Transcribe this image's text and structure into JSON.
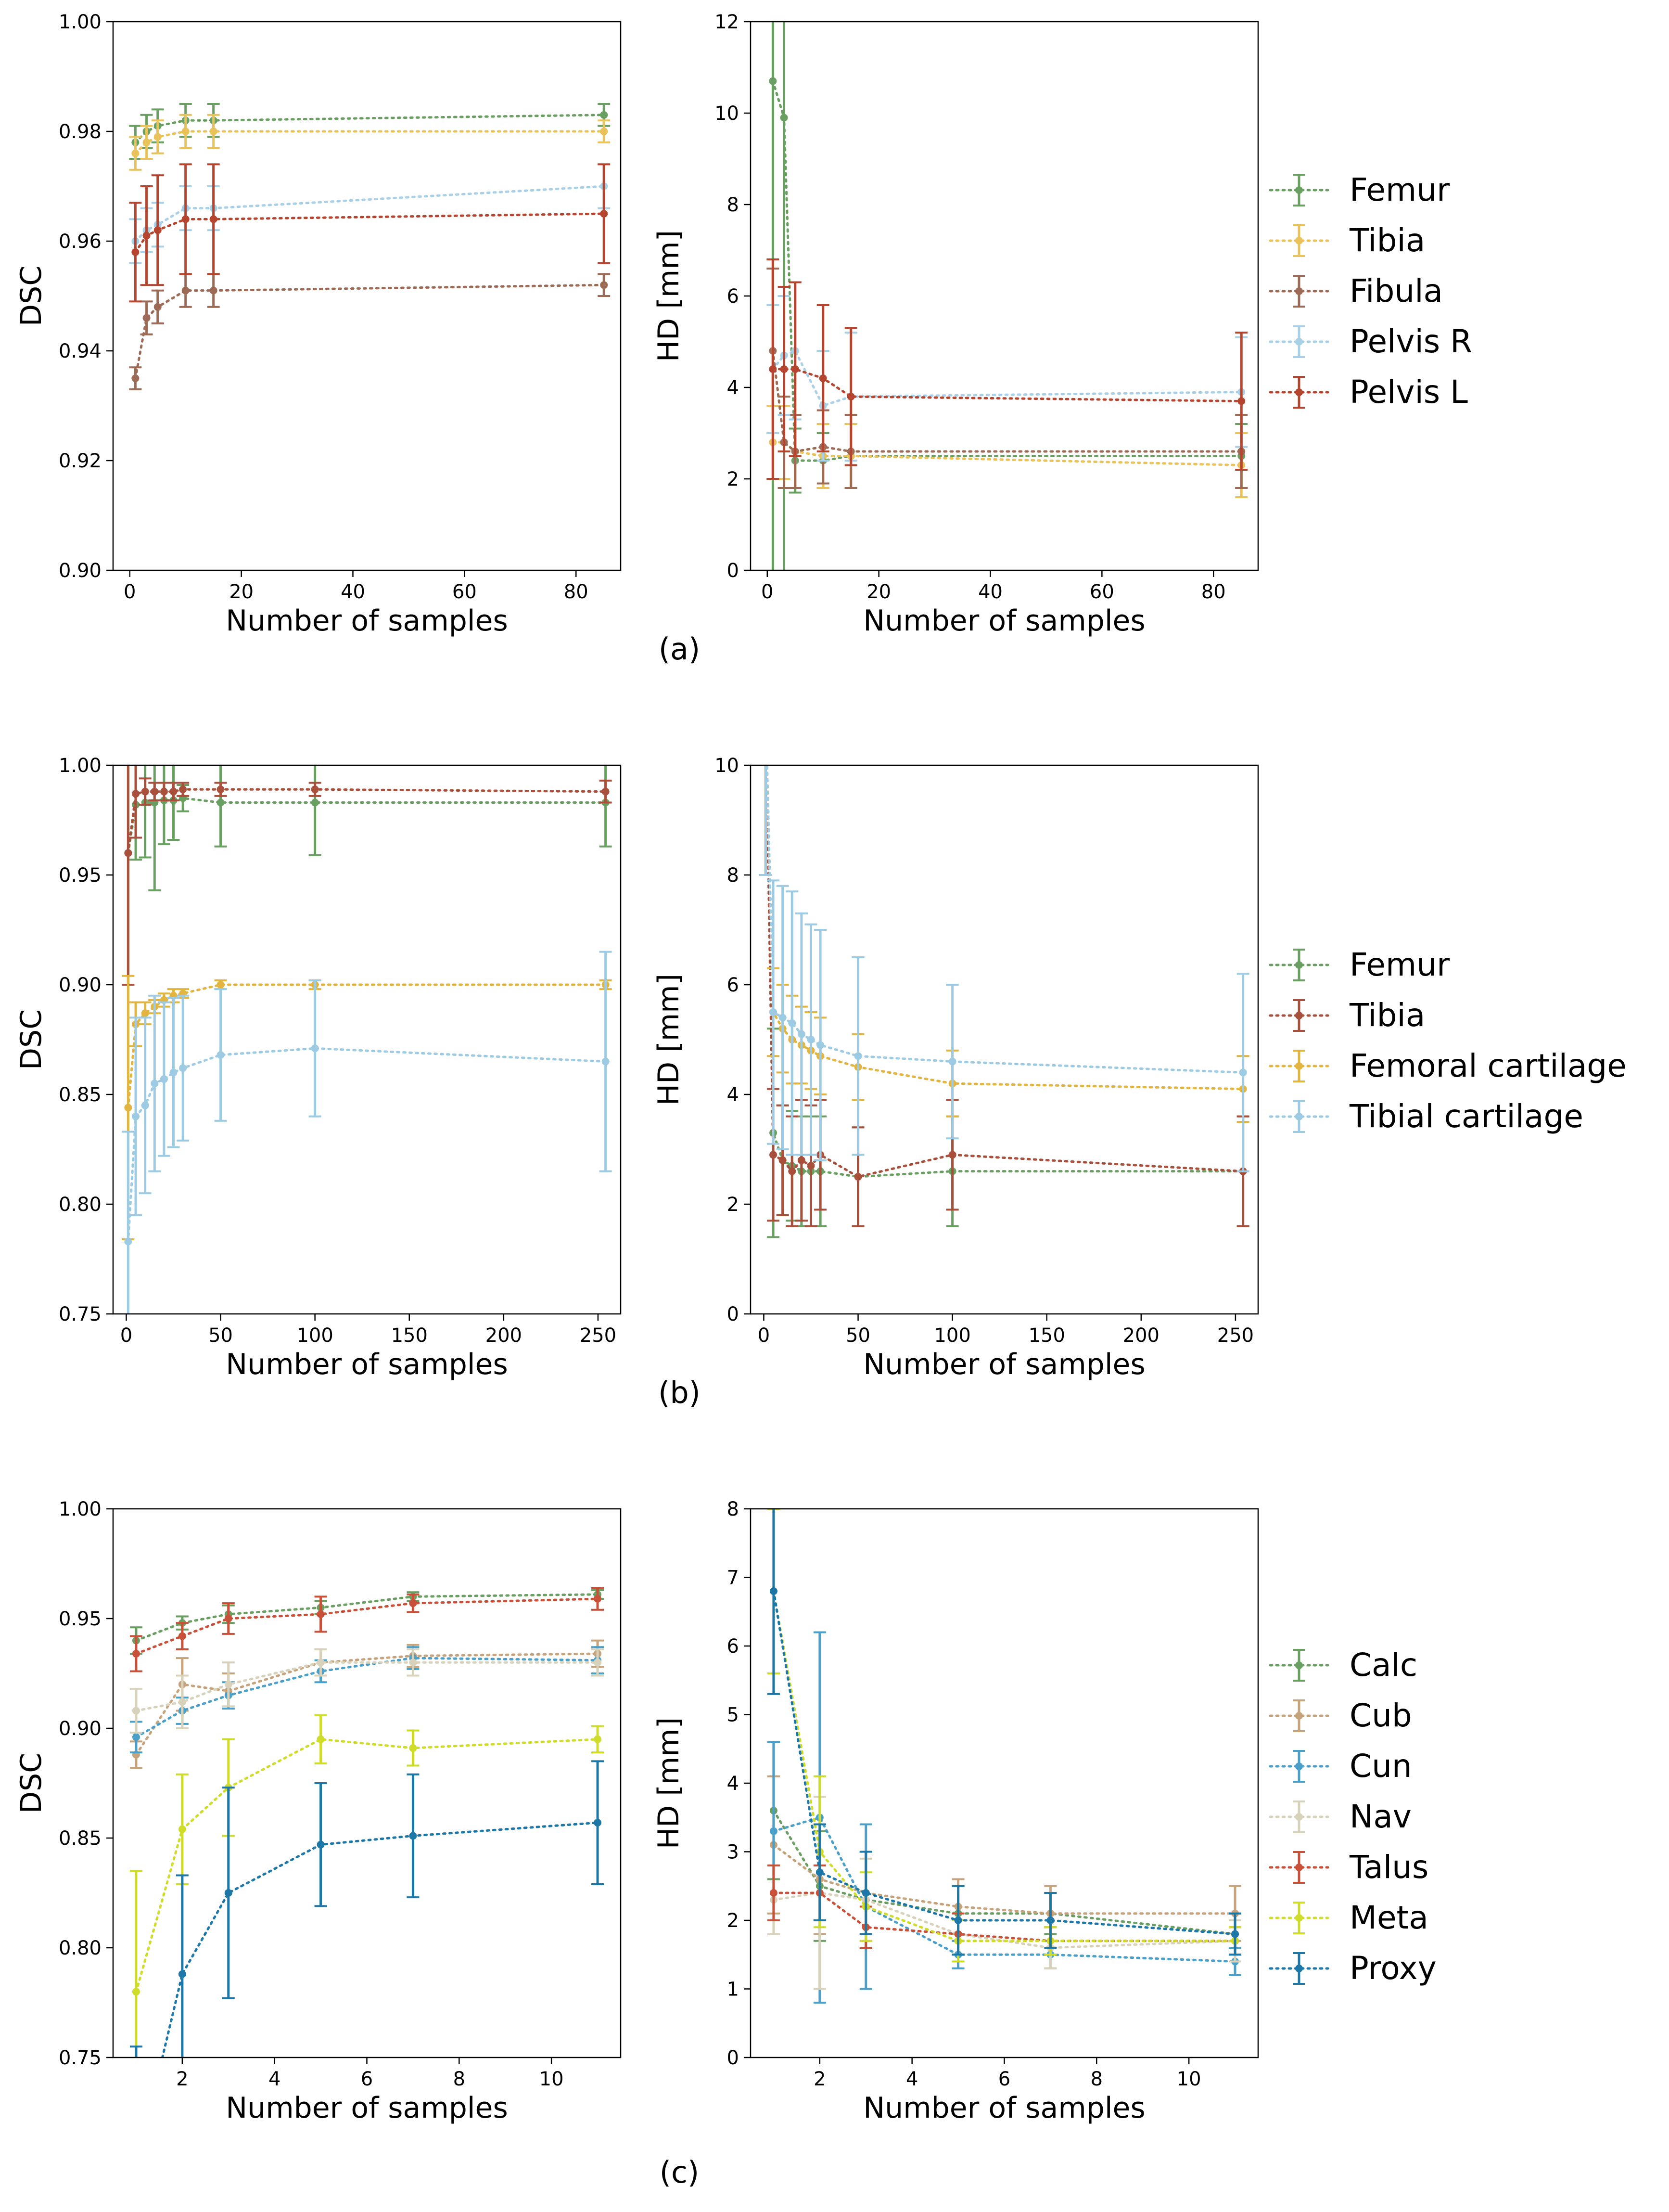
{
  "colors": {
    "femur": "#6a9f62",
    "tibia_a": "#e9c35a",
    "fibula": "#9c6a55",
    "pelvis_r": "#a8d0e6",
    "pelvis_l": "#b5452f",
    "tibia_b": "#a9503c",
    "fem_cart": "#e2b440",
    "tib_cart": "#9ccbe3",
    "calc": "#6a9f62",
    "cub": "#c7a37b",
    "cun": "#4aa0c8",
    "nav": "#d8d2ba",
    "talus": "#c9513a",
    "meta": "#cfdc2a",
    "proxy": "#1d78a8"
  },
  "chart_data": [
    {
      "id": "a-dsc",
      "type": "line",
      "panel": "(a)",
      "xlabel": "Number of samples",
      "ylabel": "DSC",
      "xlim": [
        -3,
        88
      ],
      "ylim": [
        0.9,
        1.0
      ],
      "xticks": [
        0,
        20,
        40,
        60,
        80
      ],
      "xtick_labels": [
        "0",
        "20",
        "40",
        "60",
        "80"
      ],
      "yticks": [
        0.9,
        0.92,
        0.94,
        0.96,
        0.98,
        1.0
      ],
      "ytick_labels": [
        "0.90",
        "0.92",
        "0.94",
        "0.96",
        "0.98",
        "1.00"
      ],
      "x": [
        1,
        3,
        5,
        10,
        15,
        85
      ],
      "series": [
        {
          "name": "Femur",
          "color_key": "femur",
          "values": [
            0.978,
            0.98,
            0.981,
            0.982,
            0.982,
            0.983
          ],
          "err": [
            0.003,
            0.003,
            0.003,
            0.003,
            0.003,
            0.002
          ]
        },
        {
          "name": "Tibia",
          "color_key": "tibia_a",
          "values": [
            0.976,
            0.978,
            0.979,
            0.98,
            0.98,
            0.98
          ],
          "err": [
            0.003,
            0.003,
            0.003,
            0.003,
            0.003,
            0.002
          ]
        },
        {
          "name": "Fibula",
          "color_key": "fibula",
          "values": [
            0.935,
            0.946,
            0.948,
            0.951,
            0.951,
            0.952
          ],
          "err": [
            0.002,
            0.003,
            0.003,
            0.003,
            0.003,
            0.002
          ]
        },
        {
          "name": "Pelvis R",
          "color_key": "pelvis_r",
          "values": [
            0.96,
            0.962,
            0.963,
            0.966,
            0.966,
            0.97
          ],
          "err": [
            0.004,
            0.004,
            0.004,
            0.004,
            0.004,
            0.004
          ]
        },
        {
          "name": "Pelvis L",
          "color_key": "pelvis_l",
          "values": [
            0.958,
            0.961,
            0.962,
            0.964,
            0.964,
            0.965
          ],
          "err": [
            0.009,
            0.009,
            0.01,
            0.01,
            0.01,
            0.009
          ]
        }
      ]
    },
    {
      "id": "a-hd",
      "type": "line",
      "panel": "(a)",
      "xlabel": "Number of samples",
      "ylabel": "HD [mm]",
      "xlim": [
        -3,
        88
      ],
      "ylim": [
        0,
        12
      ],
      "xticks": [
        0,
        20,
        40,
        60,
        80
      ],
      "xtick_labels": [
        "0",
        "20",
        "40",
        "60",
        "80"
      ],
      "yticks": [
        0,
        2,
        4,
        6,
        8,
        10,
        12
      ],
      "ytick_labels": [
        "0",
        "2",
        "4",
        "6",
        "8",
        "10",
        "12"
      ],
      "x": [
        1,
        3,
        5,
        10,
        15,
        85
      ],
      "legend": [
        "Femur",
        "Tibia",
        "Fibula",
        "Pelvis R",
        "Pelvis L"
      ],
      "legend_color_keys": [
        "femur",
        "tibia_a",
        "fibula",
        "pelvis_r",
        "pelvis_l"
      ],
      "series": [
        {
          "name": "Femur",
          "color_key": "femur",
          "values": [
            10.7,
            9.9,
            2.4,
            2.4,
            2.5,
            2.5
          ],
          "err": [
            13,
            13,
            0.7,
            0.6,
            0.7,
            0.7
          ]
        },
        {
          "name": "Tibia",
          "color_key": "tibia_a",
          "values": [
            2.8,
            2.8,
            2.6,
            2.5,
            2.5,
            2.3
          ],
          "err": [
            0.8,
            0.8,
            0.8,
            0.7,
            0.7,
            0.7
          ]
        },
        {
          "name": "Fibula",
          "color_key": "fibula",
          "values": [
            4.8,
            2.8,
            2.6,
            2.7,
            2.6,
            2.6
          ],
          "err": [
            1.8,
            1.0,
            0.8,
            0.8,
            0.8,
            0.8
          ]
        },
        {
          "name": "Pelvis R",
          "color_key": "pelvis_r",
          "values": [
            4.4,
            4.7,
            4.8,
            3.6,
            3.8,
            3.9
          ],
          "err": [
            1.4,
            1.3,
            1.5,
            1.2,
            1.4,
            1.2
          ]
        },
        {
          "name": "Pelvis L",
          "color_key": "pelvis_l",
          "values": [
            4.4,
            4.4,
            4.4,
            4.2,
            3.8,
            3.7
          ],
          "err": [
            2.4,
            1.8,
            1.9,
            1.6,
            1.5,
            1.5
          ]
        }
      ]
    },
    {
      "id": "b-dsc",
      "type": "line",
      "panel": "(b)",
      "xlabel": "Number of samples",
      "ylabel": "DSC",
      "xlim": [
        -7,
        262
      ],
      "ylim": [
        0.75,
        1.0
      ],
      "xticks": [
        0,
        50,
        100,
        150,
        200,
        250
      ],
      "xtick_labels": [
        "0",
        "50",
        "100",
        "150",
        "200",
        "250"
      ],
      "yticks": [
        0.75,
        0.8,
        0.85,
        0.9,
        0.95,
        1.0
      ],
      "ytick_labels": [
        "0.75",
        "0.80",
        "0.85",
        "0.90",
        "0.95",
        "1.00"
      ],
      "x": [
        1,
        5,
        10,
        15,
        20,
        25,
        30,
        50,
        100,
        254
      ],
      "series": [
        {
          "name": "Femur",
          "color_key": "femur",
          "values": [
            0.96,
            0.982,
            0.983,
            0.983,
            0.984,
            0.984,
            0.985,
            0.983,
            0.983,
            0.983
          ],
          "err": [
            0.06,
            0.025,
            0.025,
            0.04,
            0.02,
            0.018,
            0.006,
            0.02,
            0.024,
            0.02
          ]
        },
        {
          "name": "Tibia",
          "color_key": "tibia_b",
          "values": [
            0.96,
            0.987,
            0.988,
            0.988,
            0.988,
            0.988,
            0.989,
            0.989,
            0.989,
            0.988
          ],
          "err": [
            0.06,
            0.02,
            0.006,
            0.004,
            0.004,
            0.004,
            0.003,
            0.003,
            0.003,
            0.005
          ]
        },
        {
          "name": "Femoral cartilage",
          "color_key": "fem_cart",
          "values": [
            0.844,
            0.882,
            0.887,
            0.89,
            0.893,
            0.895,
            0.896,
            0.9,
            0.9,
            0.9
          ],
          "err": [
            0.06,
            0.01,
            0.005,
            0.003,
            0.003,
            0.003,
            0.002,
            0.002,
            0.002,
            0.002
          ]
        },
        {
          "name": "Tibial cartilage",
          "color_key": "tib_cart",
          "values": [
            0.783,
            0.84,
            0.845,
            0.855,
            0.857,
            0.86,
            0.862,
            0.868,
            0.871,
            0.865
          ],
          "err": [
            0.05,
            0.045,
            0.04,
            0.04,
            0.035,
            0.034,
            0.033,
            0.03,
            0.031,
            0.05
          ]
        }
      ]
    },
    {
      "id": "b-hd",
      "type": "line",
      "panel": "(b)",
      "xlabel": "Number of samples",
      "ylabel": "HD [mm]",
      "xlim": [
        -7,
        262
      ],
      "ylim": [
        0,
        10
      ],
      "xticks": [
        0,
        50,
        100,
        150,
        200,
        250
      ],
      "xtick_labels": [
        "0",
        "50",
        "100",
        "150",
        "200",
        "250"
      ],
      "yticks": [
        0,
        2,
        4,
        6,
        8,
        10
      ],
      "ytick_labels": [
        "0",
        "2",
        "4",
        "6",
        "8",
        "10"
      ],
      "x": [
        1,
        5,
        10,
        15,
        20,
        25,
        30,
        50,
        100,
        254
      ],
      "legend": [
        "Femur",
        "Tibia",
        "Femoral cartilage",
        "Tibial cartilage"
      ],
      "legend_color_keys": [
        "femur",
        "tibia_b",
        "fem_cart",
        "tib_cart"
      ],
      "series": [
        {
          "name": "Femur",
          "color_key": "femur",
          "values": [
            11,
            3.3,
            2.8,
            2.7,
            2.6,
            2.6,
            2.6,
            2.5,
            2.6,
            2.6
          ],
          "err": [
            3,
            1.9,
            1.0,
            1.0,
            1.0,
            1.0,
            1.0,
            0.9,
            1.0,
            1.0
          ]
        },
        {
          "name": "Tibia",
          "color_key": "tibia_b",
          "values": [
            11,
            2.9,
            2.8,
            2.6,
            2.8,
            2.7,
            2.9,
            2.5,
            2.9,
            2.6
          ],
          "err": [
            3,
            1.2,
            1.0,
            1.0,
            1.1,
            1.1,
            1.0,
            0.9,
            1.0,
            1.0
          ]
        },
        {
          "name": "Femoral cartilage",
          "color_key": "fem_cart",
          "values": [
            11,
            5.5,
            5.2,
            5.0,
            4.9,
            4.8,
            4.7,
            4.5,
            4.2,
            4.1
          ],
          "err": [
            3,
            0.8,
            0.8,
            0.8,
            0.7,
            0.7,
            0.7,
            0.6,
            0.6,
            0.6
          ]
        },
        {
          "name": "Tibial cartilage",
          "color_key": "tib_cart",
          "values": [
            11,
            5.5,
            5.4,
            5.3,
            5.1,
            5.0,
            4.9,
            4.7,
            4.6,
            4.4
          ],
          "err": [
            3,
            2.4,
            2.4,
            2.4,
            2.2,
            2.1,
            2.1,
            1.8,
            1.4,
            1.8
          ]
        }
      ]
    },
    {
      "id": "c-dsc",
      "type": "line",
      "panel": "(c)",
      "xlabel": "Number of samples",
      "ylabel": "DSC",
      "xlim": [
        0.5,
        11.5
      ],
      "ylim": [
        0.75,
        1.0
      ],
      "xticks": [
        2,
        4,
        6,
        8,
        10
      ],
      "xtick_labels": [
        "2",
        "4",
        "6",
        "8",
        "10"
      ],
      "yticks": [
        0.75,
        0.8,
        0.85,
        0.9,
        0.95,
        1.0
      ],
      "ytick_labels": [
        "0.75",
        "0.80",
        "0.85",
        "0.90",
        "0.95",
        "1.00"
      ],
      "x": [
        1,
        2,
        3,
        5,
        7,
        11
      ],
      "series": [
        {
          "name": "Calc",
          "color_key": "calc",
          "values": [
            0.94,
            0.948,
            0.952,
            0.955,
            0.96,
            0.961
          ],
          "err": [
            0.006,
            0.003,
            0.004,
            0.003,
            0.002,
            0.002
          ]
        },
        {
          "name": "Cub",
          "color_key": "cub",
          "values": [
            0.888,
            0.92,
            0.917,
            0.93,
            0.933,
            0.934
          ],
          "err": [
            0.006,
            0.012,
            0.008,
            0.006,
            0.005,
            0.006
          ]
        },
        {
          "name": "Cun",
          "color_key": "cun",
          "values": [
            0.896,
            0.908,
            0.915,
            0.926,
            0.932,
            0.931
          ],
          "err": [
            0.007,
            0.006,
            0.006,
            0.005,
            0.005,
            0.006
          ]
        },
        {
          "name": "Nav",
          "color_key": "nav",
          "values": [
            0.908,
            0.912,
            0.92,
            0.93,
            0.93,
            0.93
          ],
          "err": [
            0.01,
            0.012,
            0.01,
            0.006,
            0.006,
            0.006
          ]
        },
        {
          "name": "Talus",
          "color_key": "talus",
          "values": [
            0.934,
            0.942,
            0.95,
            0.952,
            0.957,
            0.959
          ],
          "err": [
            0.008,
            0.006,
            0.007,
            0.008,
            0.004,
            0.005
          ]
        },
        {
          "name": "Meta",
          "color_key": "meta",
          "values": [
            0.78,
            0.854,
            0.873,
            0.895,
            0.891,
            0.895
          ],
          "err": [
            0.055,
            0.025,
            0.022,
            0.011,
            0.008,
            0.006
          ]
        },
        {
          "name": "Proxy",
          "color_key": "proxy",
          "values": [
            0.7,
            0.788,
            0.825,
            0.847,
            0.851,
            0.857
          ],
          "err": [
            0.055,
            0.045,
            0.048,
            0.028,
            0.028,
            0.028
          ]
        }
      ]
    },
    {
      "id": "c-hd",
      "type": "line",
      "panel": "(c)",
      "xlabel": "Number of samples",
      "ylabel": "HD [mm]",
      "xlim": [
        0.5,
        11.5
      ],
      "ylim": [
        0,
        8
      ],
      "xticks": [
        2,
        4,
        6,
        8,
        10
      ],
      "xtick_labels": [
        "2",
        "4",
        "6",
        "8",
        "10"
      ],
      "yticks": [
        0,
        1,
        2,
        3,
        4,
        5,
        6,
        7,
        8
      ],
      "ytick_labels": [
        "0",
        "1",
        "2",
        "3",
        "4",
        "5",
        "6",
        "7",
        "8"
      ],
      "x": [
        1,
        2,
        3,
        5,
        7,
        11
      ],
      "legend": [
        "Calc",
        "Cub",
        "Cun",
        "Nav",
        "Talus",
        "Meta",
        "Proxy"
      ],
      "legend_color_keys": [
        "calc",
        "cub",
        "cun",
        "nav",
        "talus",
        "meta",
        "proxy"
      ],
      "series": [
        {
          "name": "Calc",
          "color_key": "calc",
          "values": [
            3.6,
            2.5,
            2.3,
            2.1,
            2.1,
            1.8
          ],
          "err": [
            1.0,
            0.8,
            0.7,
            0.4,
            0.3,
            0.3
          ]
        },
        {
          "name": "Cub",
          "color_key": "cub",
          "values": [
            3.1,
            2.6,
            2.4,
            2.2,
            2.1,
            2.1
          ],
          "err": [
            1.0,
            0.8,
            0.6,
            0.4,
            0.4,
            0.4
          ]
        },
        {
          "name": "Cun",
          "color_key": "cun",
          "values": [
            3.3,
            3.5,
            2.2,
            1.5,
            1.5,
            1.4
          ],
          "err": [
            1.3,
            2.7,
            1.2,
            0.2,
            0.2,
            0.2
          ]
        },
        {
          "name": "Nav",
          "color_key": "nav",
          "values": [
            2.3,
            2.4,
            2.3,
            1.8,
            1.6,
            1.7
          ],
          "err": [
            0.5,
            1.4,
            0.6,
            0.3,
            0.3,
            0.3
          ]
        },
        {
          "name": "Talus",
          "color_key": "talus",
          "values": [
            2.4,
            2.4,
            1.9,
            1.8,
            1.7,
            1.7
          ],
          "err": [
            0.4,
            0.4,
            0.3,
            0.3,
            0.2,
            0.2
          ]
        },
        {
          "name": "Meta",
          "color_key": "meta",
          "values": [
            6.8,
            3.0,
            2.2,
            1.7,
            1.7,
            1.7
          ],
          "err": [
            1.2,
            1.1,
            0.5,
            0.3,
            0.2,
            0.2
          ]
        },
        {
          "name": "Proxy",
          "color_key": "proxy",
          "values": [
            6.8,
            2.7,
            2.4,
            2.0,
            2.0,
            1.8
          ],
          "err": [
            1.5,
            0.7,
            0.6,
            0.5,
            0.4,
            0.3
          ]
        }
      ]
    }
  ],
  "captions": [
    "(a)",
    "(b)",
    "(c)"
  ]
}
